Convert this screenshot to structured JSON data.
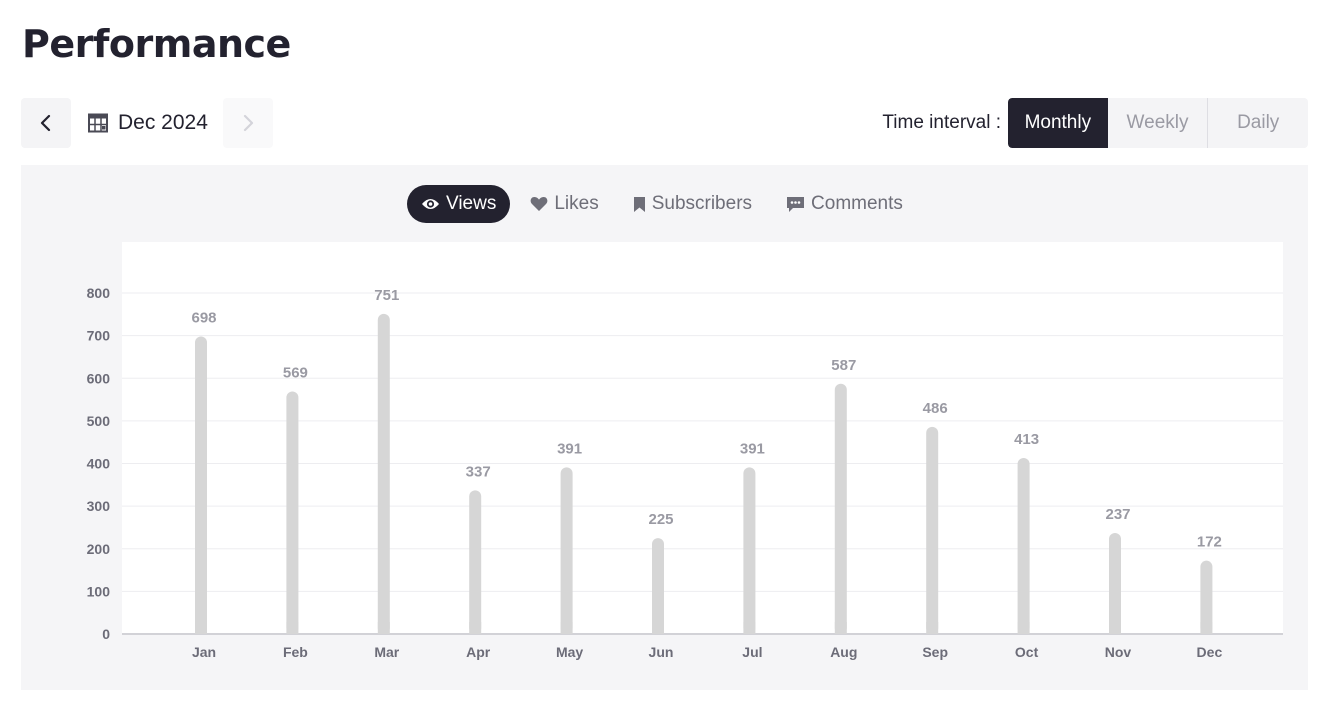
{
  "header": {
    "title": "Performance"
  },
  "date_nav": {
    "current_label": "Dec 2024",
    "calendar_icon": "calendar-icon",
    "prev_icon": "chevron-left-icon",
    "next_icon": "chevron-right-icon"
  },
  "time_interval": {
    "label": "Time interval :",
    "options": [
      "Monthly",
      "Weekly",
      "Daily"
    ],
    "selected": "Monthly"
  },
  "metrics": {
    "tabs": [
      {
        "label": "Views",
        "icon": "eye-icon"
      },
      {
        "label": "Likes",
        "icon": "heart-icon"
      },
      {
        "label": "Subscribers",
        "icon": "bookmark-icon"
      },
      {
        "label": "Comments",
        "icon": "comment-icon"
      }
    ],
    "selected": "Views"
  },
  "colors": {
    "dark": "#23222f",
    "bar": "#d6d6d6",
    "panel": "#f5f5f7"
  },
  "chart_data": {
    "type": "bar",
    "categories": [
      "Jan",
      "Feb",
      "Mar",
      "Apr",
      "May",
      "Jun",
      "Jul",
      "Aug",
      "Sep",
      "Oct",
      "Nov",
      "Dec"
    ],
    "values": [
      698,
      569,
      751,
      337,
      391,
      225,
      391,
      587,
      486,
      413,
      237,
      172
    ],
    "yticks": [
      0,
      100,
      200,
      300,
      400,
      500,
      600,
      700,
      800
    ],
    "ylim": [
      0,
      800
    ],
    "grid": true,
    "data_labels": true
  }
}
